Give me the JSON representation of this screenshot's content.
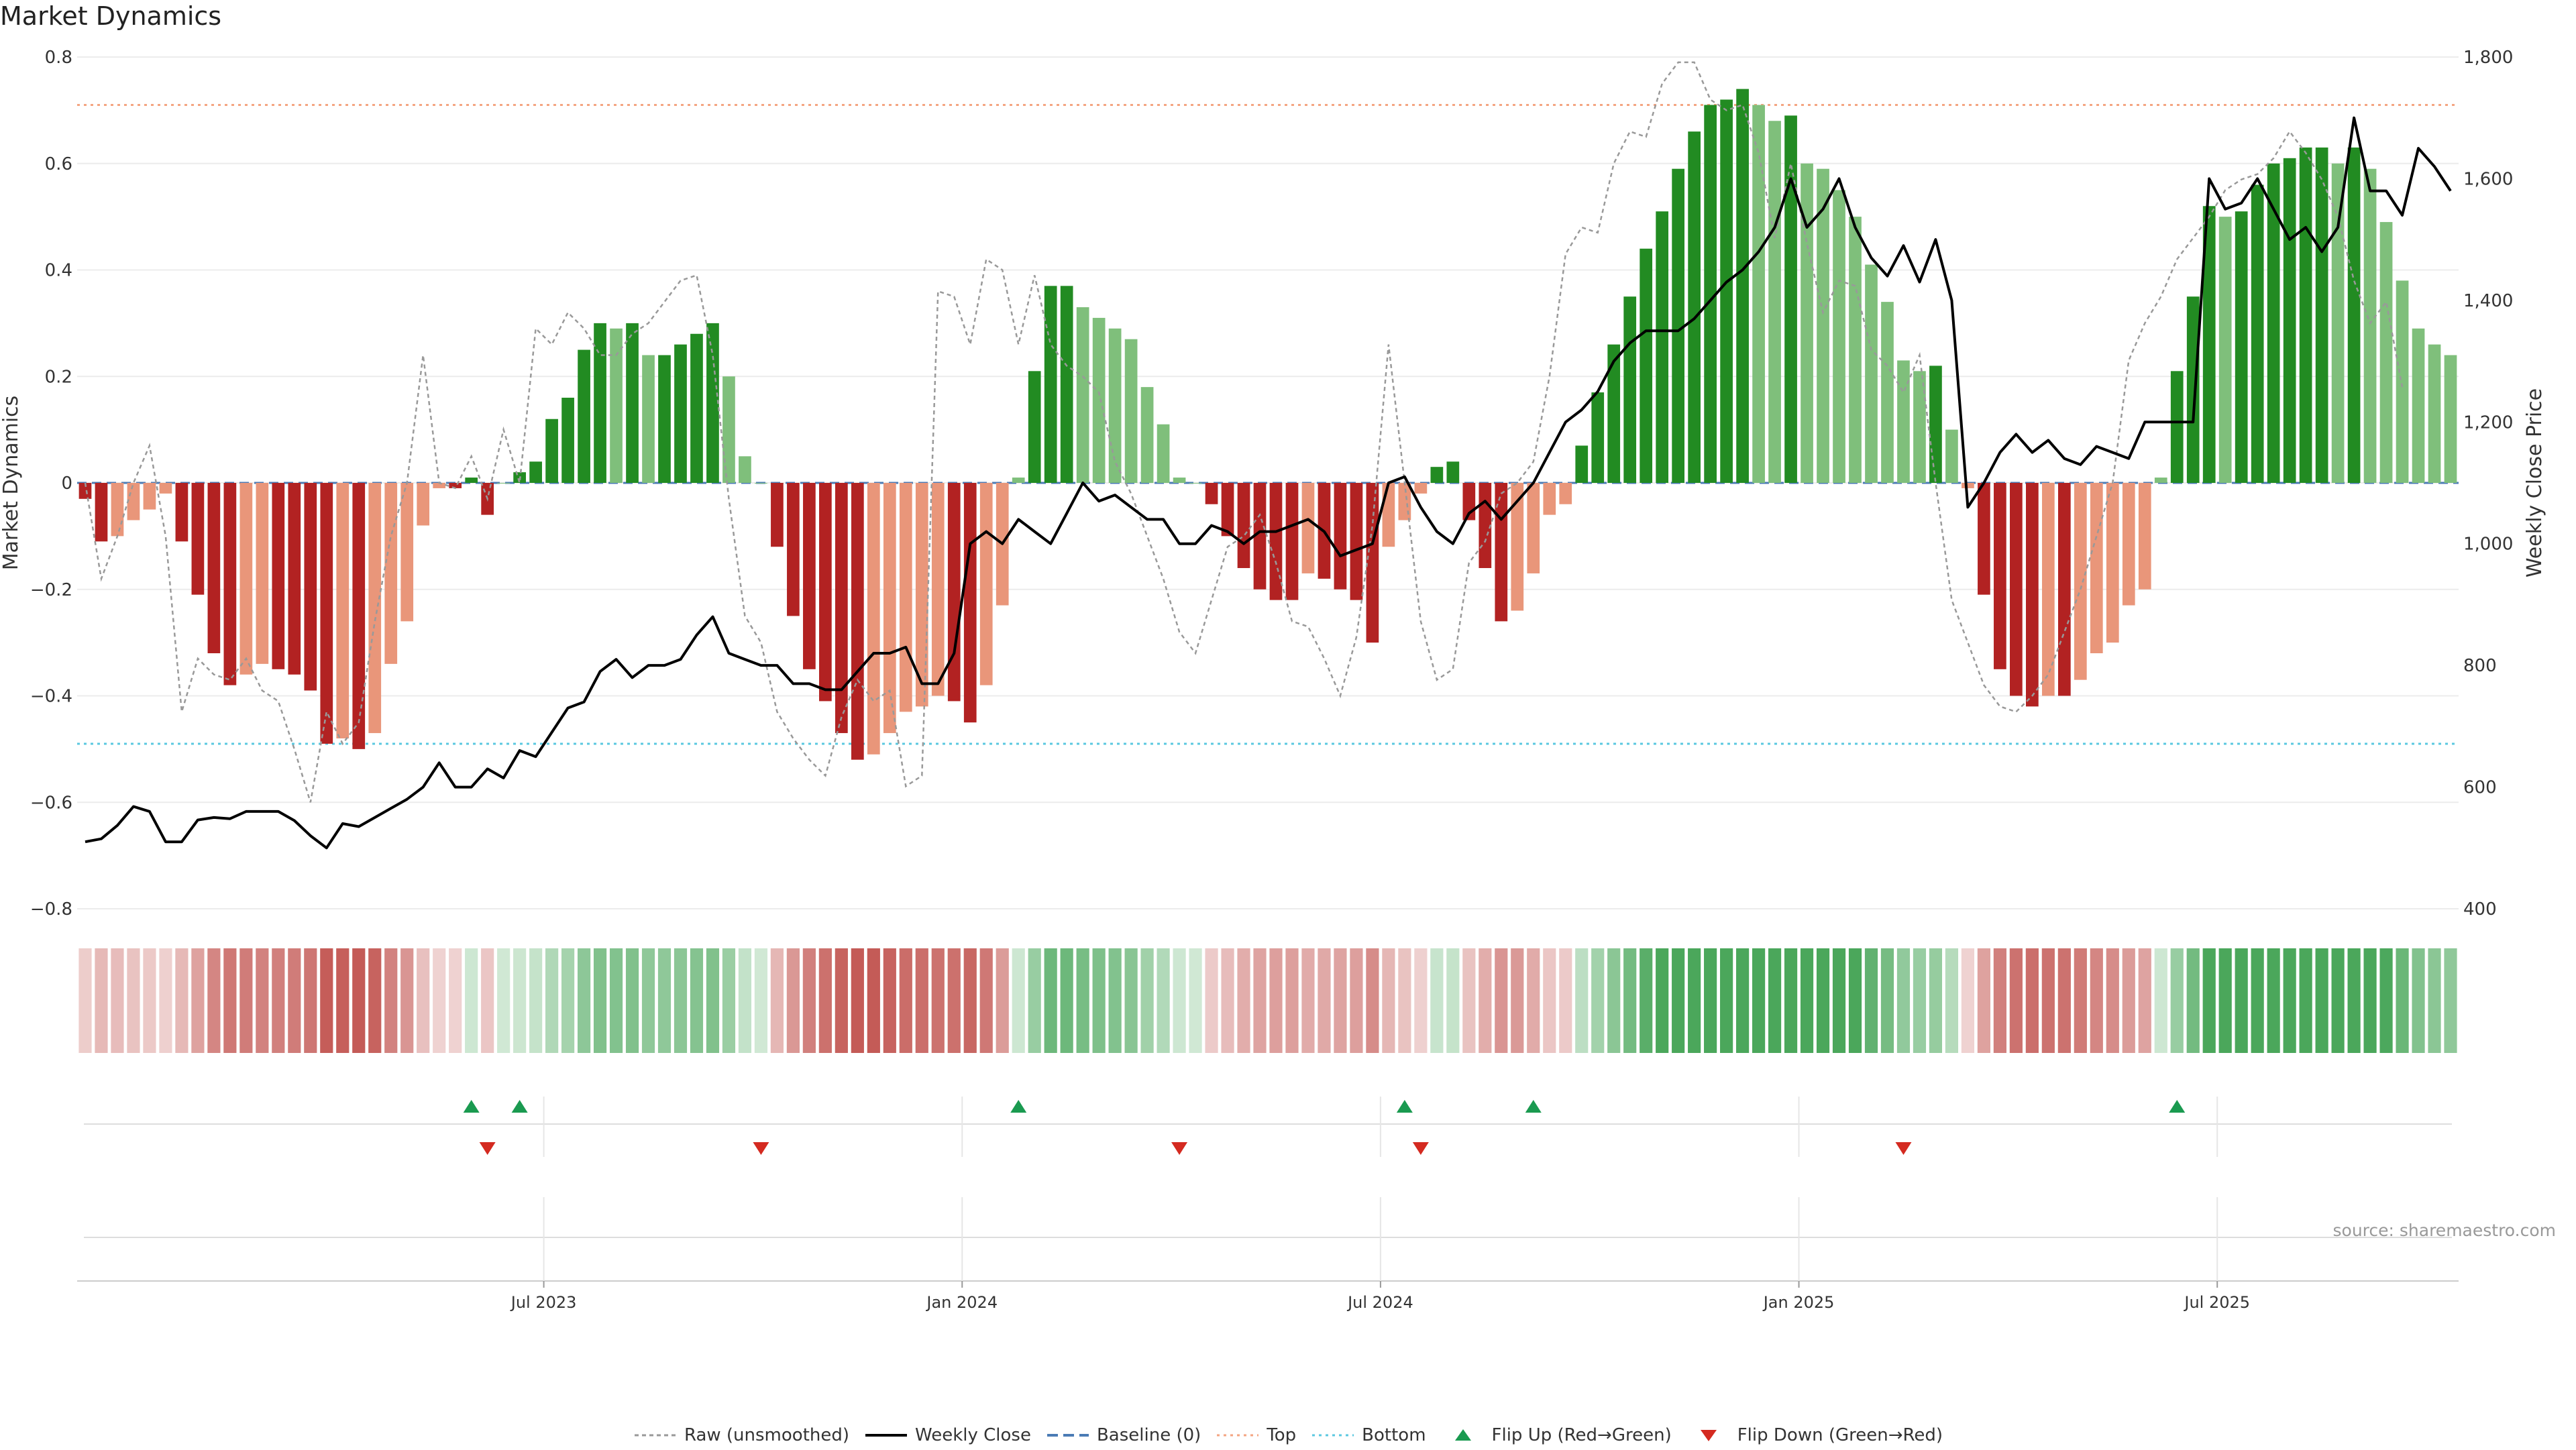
{
  "title": "Market Dynamics",
  "source_note": "source: sharemaestro.com",
  "legend": [
    {
      "key": "raw",
      "label": "Raw (unsmoothed)",
      "color": "#999999"
    },
    {
      "key": "close",
      "label": "Weekly Close",
      "color": "#000000"
    },
    {
      "key": "baseline",
      "label": "Baseline (0)",
      "color": "#4b7bb5"
    },
    {
      "key": "top",
      "label": "Top",
      "color": "#f4a582"
    },
    {
      "key": "bottom",
      "label": "Bottom",
      "color": "#5bc8e0"
    },
    {
      "key": "flipup",
      "label": "Flip Up (Red→Green)",
      "color": "#1a9a50"
    },
    {
      "key": "flipdown",
      "label": "Flip Down (Green→Red)",
      "color": "#d42a20"
    }
  ],
  "chart_data": {
    "type": "bar",
    "title": "Market Dynamics",
    "ylabel": "Market Dynamics",
    "ylabel_right": "Weekly Close Price",
    "ylim": [
      -0.8,
      0.8
    ],
    "ylim_right": [
      400,
      1800
    ],
    "yticks": [
      0.8,
      0.6,
      0.4,
      0.2,
      0,
      -0.2,
      -0.4,
      -0.6,
      -0.8
    ],
    "ytick_labels": [
      "0.8",
      "0.6",
      "0.4",
      "0.2",
      "0",
      "−0.2",
      "−0.4",
      "−0.6",
      "−0.8"
    ],
    "yticks_right": [
      1800,
      1600,
      1400,
      1200,
      1000,
      800,
      600,
      400
    ],
    "ytick_labels_right": [
      "1,800",
      "1,600",
      "1,400",
      "1,200",
      "1,000",
      "800",
      "600",
      "400"
    ],
    "x_tick_labels": [
      "Jul 2023",
      "Jan 2024",
      "Jul 2024",
      "Jan 2025",
      "Jul 2025"
    ],
    "x_tick_weeks": [
      29,
      55,
      81,
      107,
      133
    ],
    "week_count": 148,
    "top_level": 0.71,
    "bottom_level": -0.49,
    "baseline": 0,
    "bars": [
      -0.03,
      -0.11,
      -0.1,
      -0.07,
      -0.05,
      -0.02,
      -0.11,
      -0.21,
      -0.32,
      -0.38,
      -0.36,
      -0.34,
      -0.35,
      -0.36,
      -0.39,
      -0.49,
      -0.48,
      -0.5,
      -0.47,
      -0.34,
      -0.26,
      -0.08,
      -0.01,
      -0.01,
      0.01,
      -0.06,
      0.0,
      0.02,
      0.04,
      0.12,
      0.16,
      0.25,
      0.3,
      0.29,
      0.3,
      0.24,
      0.24,
      0.26,
      0.28,
      0.3,
      0.2,
      0.05,
      0.0,
      -0.12,
      -0.25,
      -0.35,
      -0.41,
      -0.47,
      -0.52,
      -0.51,
      -0.47,
      -0.43,
      -0.42,
      -0.4,
      -0.41,
      -0.45,
      -0.38,
      -0.23,
      0.01,
      0.21,
      0.37,
      0.37,
      0.33,
      0.31,
      0.29,
      0.27,
      0.18,
      0.11,
      0.01,
      0.0,
      -0.04,
      -0.1,
      -0.16,
      -0.2,
      -0.22,
      -0.22,
      -0.17,
      -0.18,
      -0.2,
      -0.22,
      -0.3,
      -0.12,
      -0.07,
      -0.02,
      0.03,
      0.04,
      -0.07,
      -0.16,
      -0.26,
      -0.24,
      -0.17,
      -0.06,
      -0.04,
      0.07,
      0.17,
      0.26,
      0.35,
      0.44,
      0.51,
      0.59,
      0.66,
      0.71,
      0.72,
      0.74,
      0.71,
      0.68,
      0.69,
      0.6,
      0.59,
      0.55,
      0.5,
      0.41,
      0.34,
      0.23,
      0.21,
      0.22,
      0.1,
      -0.01,
      -0.21,
      -0.35,
      -0.4,
      -0.42,
      -0.4,
      -0.4,
      -0.37,
      -0.32,
      -0.3,
      -0.23,
      -0.2,
      0.01,
      0.21,
      0.35,
      0.52,
      0.5,
      0.51,
      0.56,
      0.6,
      0.61,
      0.63,
      0.63,
      0.6,
      0.63,
      0.59,
      0.49,
      0.38,
      0.29,
      0.26,
      0.24
    ],
    "raw": [
      0.0,
      -0.18,
      -0.1,
      0.0,
      0.07,
      -0.1,
      -0.43,
      -0.33,
      -0.36,
      -0.37,
      -0.33,
      -0.39,
      -0.41,
      -0.5,
      -0.6,
      -0.43,
      -0.49,
      -0.45,
      -0.26,
      -0.1,
      0.0,
      0.24,
      0.0,
      -0.01,
      0.05,
      -0.03,
      0.1,
      0.0,
      0.29,
      0.26,
      0.32,
      0.29,
      0.24,
      0.24,
      0.28,
      0.3,
      0.34,
      0.38,
      0.39,
      0.24,
      -0.03,
      -0.25,
      -0.3,
      -0.43,
      -0.48,
      -0.52,
      -0.55,
      -0.44,
      -0.37,
      -0.41,
      -0.39,
      -0.57,
      -0.55,
      0.36,
      0.35,
      0.26,
      0.42,
      0.4,
      0.26,
      0.39,
      0.26,
      0.22,
      0.2,
      0.17,
      0.04,
      -0.02,
      -0.1,
      -0.18,
      -0.28,
      -0.32,
      -0.22,
      -0.12,
      -0.1,
      -0.06,
      -0.15,
      -0.26,
      -0.27,
      -0.33,
      -0.4,
      -0.29,
      -0.08,
      0.26,
      0.0,
      -0.26,
      -0.37,
      -0.35,
      -0.15,
      -0.11,
      -0.02,
      0.0,
      0.04,
      0.2,
      0.43,
      0.48,
      0.47,
      0.6,
      0.66,
      0.65,
      0.75,
      0.79,
      0.79,
      0.72,
      0.7,
      0.71,
      0.62,
      0.46,
      0.6,
      0.45,
      0.32,
      0.38,
      0.37,
      0.25,
      0.22,
      0.17,
      0.24,
      0.0,
      -0.22,
      -0.3,
      -0.38,
      -0.42,
      -0.43,
      -0.4,
      -0.36,
      -0.28,
      -0.2,
      -0.1,
      0.0,
      0.23,
      0.3,
      0.35,
      0.42,
      0.46,
      0.5,
      0.55,
      0.57,
      0.58,
      0.61,
      0.66,
      0.62,
      0.57,
      0.5,
      0.38,
      0.3,
      0.34,
      0.18
    ],
    "close": [
      510,
      515,
      537,
      568,
      560,
      510,
      510,
      546,
      550,
      548,
      560,
      560,
      560,
      545,
      520,
      500,
      540,
      535,
      550,
      565,
      580,
      600,
      640,
      600,
      600,
      630,
      615,
      660,
      650,
      690,
      730,
      740,
      790,
      810,
      780,
      800,
      800,
      810,
      850,
      880,
      820,
      810,
      800,
      800,
      770,
      770,
      760,
      760,
      790,
      820,
      820,
      830,
      770,
      770,
      820,
      1000,
      1020,
      1000,
      1040,
      1020,
      1000,
      1050,
      1100,
      1070,
      1080,
      1060,
      1040,
      1040,
      1000,
      1000,
      1030,
      1020,
      1000,
      1020,
      1020,
      1030,
      1040,
      1020,
      980,
      990,
      1000,
      1100,
      1110,
      1060,
      1020,
      1000,
      1050,
      1070,
      1040,
      1070,
      1100,
      1150,
      1200,
      1220,
      1250,
      1300,
      1330,
      1350,
      1350,
      1350,
      1370,
      1400,
      1430,
      1450,
      1480,
      1520,
      1600,
      1520,
      1550,
      1600,
      1520,
      1470,
      1440,
      1490,
      1430,
      1500,
      1400,
      1060,
      1100,
      1150,
      1180,
      1150,
      1170,
      1140,
      1130,
      1160,
      1150,
      1140,
      1200,
      1200,
      1200,
      1200,
      1600,
      1550,
      1560,
      1600,
      1550,
      1500,
      1520,
      1480,
      1520,
      1700,
      1580,
      1580,
      1540,
      1650,
      1620,
      1580
    ]
  },
  "flips": {
    "up": [
      24,
      27,
      58,
      82,
      90,
      130
    ],
    "down": [
      25,
      42,
      68,
      83,
      113
    ]
  }
}
